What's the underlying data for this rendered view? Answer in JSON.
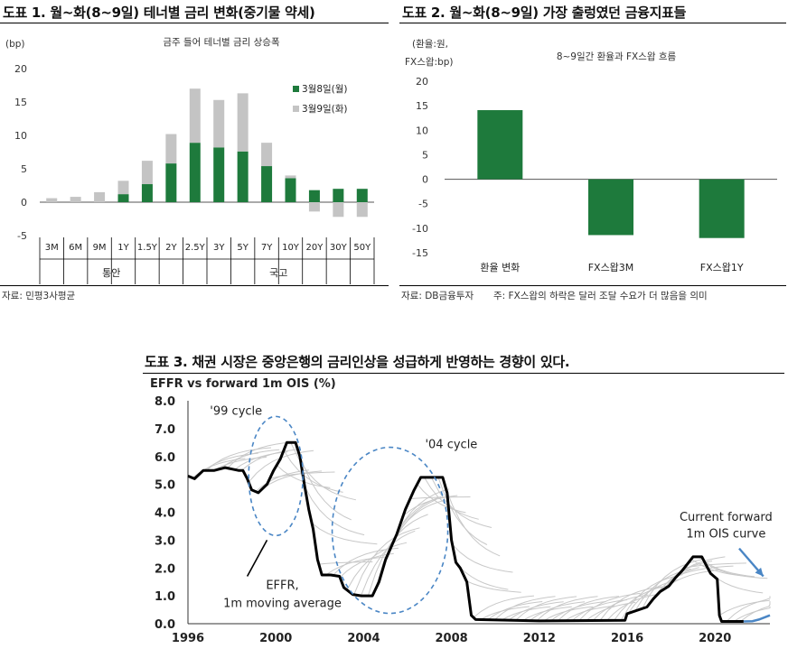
{
  "panels": {
    "fig1": {
      "title": "도표 1. 월~화(8~9일) 테너별 금리 변화(중기물 약세)",
      "source": "자료: 민평3사평균"
    },
    "fig2": {
      "title": "도표 2. 월~화(8~9일) 가장 출렁였던 금융지표들",
      "source": "자료: DB금융투자",
      "note": "주: FX스왑의 하락은 달러 조달 수요가 더 많음을 의미"
    },
    "fig3": {
      "title": "도표 3. 채권 시장은 중앙은행의 금리인상을 성급하게 반영하는 경향이 있다."
    }
  },
  "chart_data": [
    {
      "type": "bar",
      "title": "금주 들어 테너별 금리 상승폭",
      "unit_label": "(bp)",
      "categories": [
        "3M",
        "6M",
        "9M",
        "1Y",
        "1.5Y",
        "2Y",
        "2.5Y",
        "3Y",
        "5Y",
        "7Y",
        "10Y",
        "20Y",
        "30Y",
        "50Y"
      ],
      "groups": [
        {
          "label": "통안",
          "span": [
            0,
            5
          ]
        },
        {
          "label": "국고",
          "span": [
            6,
            13
          ]
        }
      ],
      "series": [
        {
          "name": "3월8일(월)",
          "color": "#1e7a3c",
          "values": [
            0,
            0,
            0,
            1.2,
            2.7,
            5.8,
            8.9,
            8.2,
            7.6,
            5.4,
            3.6,
            1.8,
            2.0,
            2.0
          ]
        },
        {
          "name": "3월9일(화)",
          "color": "#c4c4c4",
          "values": [
            0.6,
            0.8,
            1.5,
            2.0,
            3.5,
            4.4,
            8.1,
            7.1,
            8.7,
            3.5,
            0.4,
            -1.4,
            -2.2,
            -2.2
          ]
        }
      ],
      "ylim": [
        -5,
        20
      ],
      "yticks": [
        -5,
        0,
        5,
        10,
        15,
        20
      ],
      "legend_position": "top-right",
      "grid": false
    },
    {
      "type": "bar",
      "title": "8~9일간 환율과 FX스왑 흐름",
      "unit_label": [
        "(환율:원,",
        "FX스왑:bp)"
      ],
      "categories": [
        "환율 변화",
        "FX스왑3M",
        "FX스왑1Y"
      ],
      "values": [
        14.1,
        -11.4,
        -12.0
      ],
      "color": "#1e7a3c",
      "ylim": [
        -15,
        20
      ],
      "yticks": [
        -15,
        -10,
        -5,
        0,
        5,
        10,
        15,
        20
      ],
      "grid": false
    },
    {
      "type": "line",
      "title": "EFFR vs forward 1m OIS (%)",
      "xlim": [
        1996,
        2022.5
      ],
      "xticks": [
        1996,
        2000,
        2004,
        2008,
        2012,
        2016,
        2020
      ],
      "ylim": [
        0,
        8
      ],
      "yticks": [
        "0.0",
        "1.0",
        "2.0",
        "3.0",
        "4.0",
        "5.0",
        "6.0",
        "7.0",
        "8.0"
      ],
      "effr_color": "#000000",
      "forward_color": "#c8c8c8",
      "current_curve_color": "#4a86c5",
      "effr": [
        [
          1996.0,
          5.3
        ],
        [
          1996.3,
          5.2
        ],
        [
          1996.7,
          5.5
        ],
        [
          1997.2,
          5.5
        ],
        [
          1997.7,
          5.6
        ],
        [
          1998.3,
          5.5
        ],
        [
          1998.5,
          5.5
        ],
        [
          1998.7,
          5.2
        ],
        [
          1998.9,
          4.8
        ],
        [
          1999.2,
          4.7
        ],
        [
          1999.6,
          5.0
        ],
        [
          1999.9,
          5.5
        ],
        [
          2000.2,
          5.9
        ],
        [
          2000.5,
          6.5
        ],
        [
          2000.9,
          6.5
        ],
        [
          2001.1,
          6.0
        ],
        [
          2001.3,
          5.0
        ],
        [
          2001.5,
          4.1
        ],
        [
          2001.7,
          3.4
        ],
        [
          2001.9,
          2.3
        ],
        [
          2002.1,
          1.75
        ],
        [
          2002.5,
          1.75
        ],
        [
          2002.9,
          1.7
        ],
        [
          2003.1,
          1.3
        ],
        [
          2003.5,
          1.05
        ],
        [
          2003.9,
          1.0
        ],
        [
          2004.4,
          1.0
        ],
        [
          2004.7,
          1.5
        ],
        [
          2005.0,
          2.3
        ],
        [
          2005.5,
          3.2
        ],
        [
          2005.9,
          4.1
        ],
        [
          2006.3,
          4.8
        ],
        [
          2006.6,
          5.25
        ],
        [
          2007.0,
          5.25
        ],
        [
          2007.6,
          5.25
        ],
        [
          2007.8,
          4.7
        ],
        [
          2008.0,
          3.0
        ],
        [
          2008.2,
          2.2
        ],
        [
          2008.4,
          2.0
        ],
        [
          2008.7,
          1.5
        ],
        [
          2008.9,
          0.3
        ],
        [
          2009.1,
          0.15
        ],
        [
          2012.0,
          0.1
        ],
        [
          2015.9,
          0.12
        ],
        [
          2016.0,
          0.36
        ],
        [
          2016.9,
          0.6
        ],
        [
          2017.2,
          0.9
        ],
        [
          2017.5,
          1.15
        ],
        [
          2017.9,
          1.35
        ],
        [
          2018.2,
          1.65
        ],
        [
          2018.5,
          1.9
        ],
        [
          2018.8,
          2.2
        ],
        [
          2019.0,
          2.4
        ],
        [
          2019.4,
          2.4
        ],
        [
          2019.6,
          2.1
        ],
        [
          2019.8,
          1.8
        ],
        [
          2020.1,
          1.6
        ],
        [
          2020.2,
          0.3
        ],
        [
          2020.3,
          0.08
        ],
        [
          2021.3,
          0.08
        ]
      ],
      "current_forward_curve": [
        [
          2021.3,
          0.08
        ],
        [
          2021.7,
          0.09
        ],
        [
          2022.0,
          0.15
        ],
        [
          2022.5,
          0.3
        ]
      ],
      "annotations": [
        "'99 cycle",
        "'04 cycle",
        "EFFR,",
        "1m moving average",
        "Current forward",
        "1m OIS curve"
      ]
    }
  ]
}
